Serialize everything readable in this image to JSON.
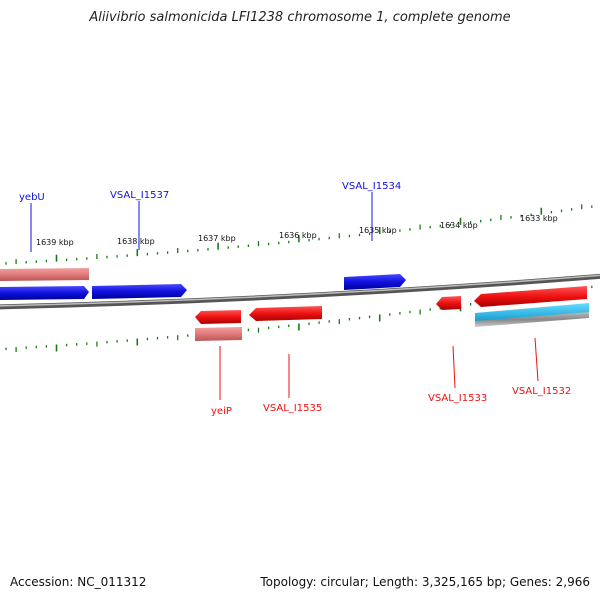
{
  "title": "Aliivibrio salmonicida LFI1238 chromosome 1, complete genome",
  "footer": {
    "accession": "Accession: NC_011312",
    "summary": "Topology: circular; Length: 3,325,165 bp; Genes: 2,966"
  },
  "colors": {
    "forward": "#1010dd",
    "reverse": "#ee1111",
    "pseudo": "#e07a7a",
    "cyan": "#22bbee",
    "backbone": "#777777",
    "ticks": "#1a7a1a"
  },
  "kbp_labels": [
    "1639 kbp",
    "1638 kbp",
    "1637 kbp",
    "1636 kbp",
    "1635 kbp",
    "1634 kbp",
    "1633 kbp"
  ],
  "gene_labels": {
    "top": [
      "yebU",
      "VSAL_I1537",
      "VSAL_I1534"
    ],
    "bottom": [
      "yeiP",
      "VSAL_I1535",
      "VSAL_I1533",
      "VSAL_I1532"
    ]
  }
}
